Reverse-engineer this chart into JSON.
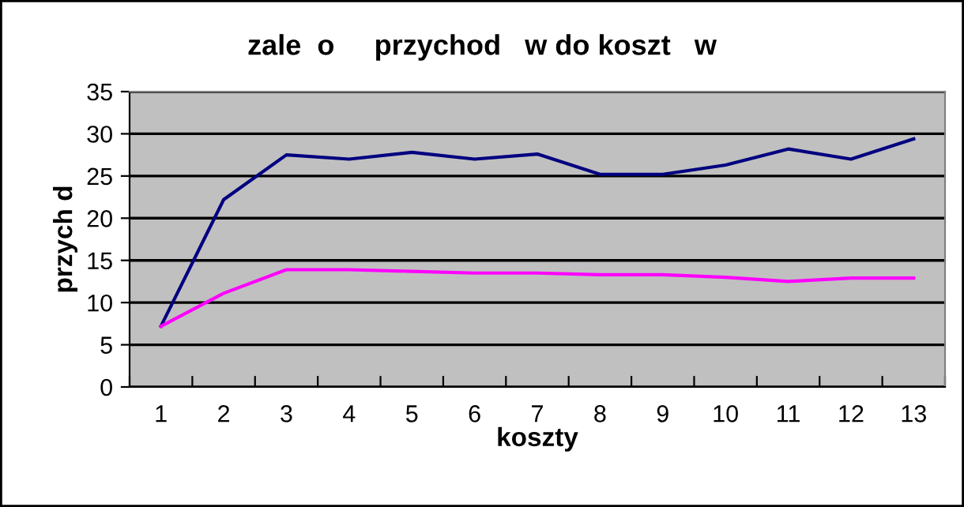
{
  "chart_data": {
    "type": "line",
    "title": "zale  o     przychod   w do koszt   w",
    "xlabel": "koszty",
    "ylabel": "przych d",
    "categories": [
      "1",
      "2",
      "3",
      "4",
      "5",
      "6",
      "7",
      "8",
      "9",
      "10",
      "11",
      "12",
      "13"
    ],
    "series": [
      {
        "color": "#000080",
        "values": [
          7.2,
          22.2,
          27.5,
          27.0,
          27.8,
          27.0,
          27.6,
          25.2,
          25.2,
          26.3,
          28.2,
          27.0,
          29.4
        ]
      },
      {
        "color": "#ff00ff",
        "values": [
          7.2,
          11.1,
          13.9,
          13.9,
          13.7,
          13.5,
          13.5,
          13.3,
          13.3,
          13.0,
          12.5,
          12.9,
          12.9
        ]
      }
    ],
    "ylim": [
      0,
      35
    ],
    "yticks": [
      0,
      5,
      10,
      15,
      20,
      25,
      30,
      35
    ],
    "grid": "y",
    "marker": "none",
    "line_style": "solid"
  }
}
